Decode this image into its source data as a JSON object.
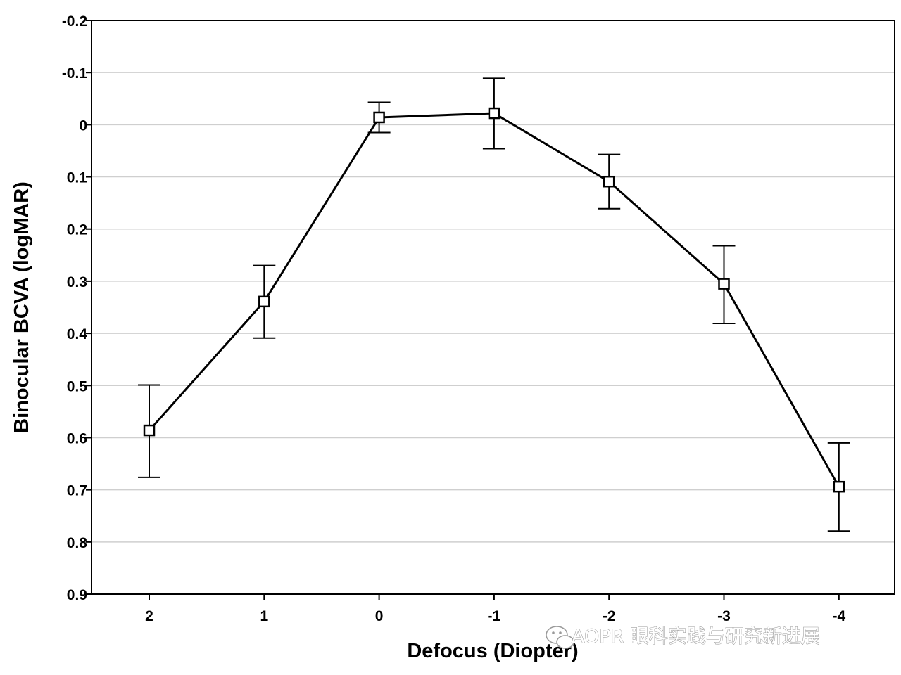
{
  "chart_data": {
    "type": "line",
    "xlabel": "Defocus (Diopter)",
    "ylabel": "Binocular BCVA (logMAR)",
    "x_ticks": [
      "2",
      "1",
      "0",
      "-1",
      "-2",
      "-3",
      "-4"
    ],
    "y_ticks": [
      "-0.2",
      "-0.1",
      "0",
      "0.1",
      "0.2",
      "0.3",
      "0.4",
      "0.5",
      "0.6",
      "0.7",
      "0.8",
      "0.9"
    ],
    "ylim": [
      -0.2,
      0.9
    ],
    "y_inverted": true,
    "grid": "horizontal",
    "series": [
      {
        "x": [
          2,
          1,
          0,
          -1,
          -2,
          -3,
          -4
        ],
        "values": [
          0.586,
          0.339,
          -0.014,
          -0.022,
          0.109,
          0.305,
          0.694
        ],
        "error_lower": [
          0.499,
          0.27,
          -0.043,
          -0.089,
          0.057,
          0.232,
          0.61
        ],
        "error_upper": [
          0.676,
          0.409,
          0.015,
          0.046,
          0.161,
          0.381,
          0.779
        ],
        "marker": "open-square",
        "color": "#000000"
      }
    ]
  },
  "watermark": {
    "text": "AOPR 眼科实践与研究新进展",
    "icon": "wechat-icon"
  }
}
